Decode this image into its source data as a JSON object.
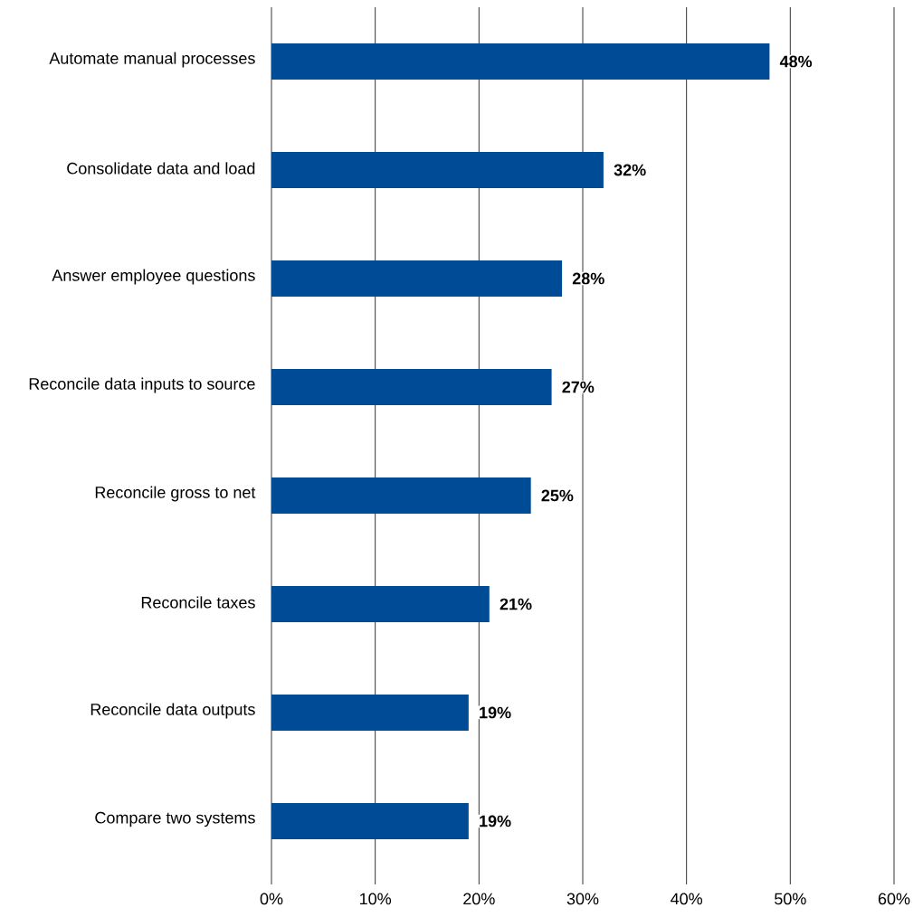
{
  "chart_data": {
    "type": "bar",
    "orientation": "horizontal",
    "categories": [
      "Automate manual processes",
      "Consolidate data and load",
      "Answer employee questions",
      "Reconcile data inputs to source",
      "Reconcile gross to net",
      "Reconcile taxes",
      "Reconcile data outputs",
      "Compare two systems"
    ],
    "values": [
      48,
      32,
      28,
      27,
      25,
      21,
      19,
      19
    ],
    "value_labels": [
      "48%",
      "32%",
      "28%",
      "27%",
      "25%",
      "21%",
      "19%",
      "19%"
    ],
    "color": "#004b96",
    "xlim": [
      0,
      60
    ],
    "xticks": [
      {
        "value": 0,
        "label": "0%"
      },
      {
        "value": 10,
        "label": "10%"
      },
      {
        "value": 20,
        "label": "20%"
      },
      {
        "value": 30,
        "label": "30%"
      },
      {
        "value": 40,
        "label": "40%"
      },
      {
        "value": 50,
        "label": "50%"
      },
      {
        "value": 60,
        "label": "60%"
      }
    ],
    "grid": "x"
  }
}
